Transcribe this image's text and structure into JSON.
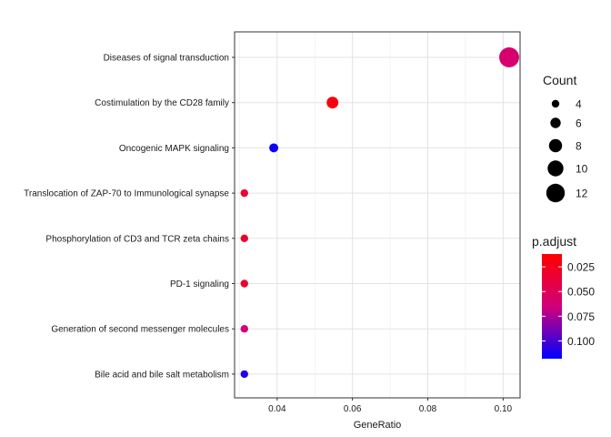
{
  "chart_data": {
    "type": "scatter",
    "title": "",
    "xlabel": "GeneRatio",
    "ylabel": "",
    "xlim": [
      0.0287,
      0.1045
    ],
    "x_ticks": [
      0.04,
      0.06,
      0.08,
      0.1
    ],
    "x_tick_labels": [
      "0.04",
      "0.06",
      "0.08",
      "0.10"
    ],
    "grid": true,
    "categories": [
      "Diseases of signal transduction",
      "Costimulation by the CD28 family",
      "Oncogenic MAPK signaling",
      "Translocation of ZAP-70 to Immunological synapse",
      "Phosphorylation of CD3 and TCR zeta chains",
      "PD-1 signaling",
      "Generation of second messenger molecules",
      "Bile acid and bile salt metabolism"
    ],
    "points": [
      {
        "category": "Diseases of signal transduction",
        "gene_ratio": 0.1016,
        "count": 13,
        "p_adjust": 0.06
      },
      {
        "category": "Costimulation by the CD28 family",
        "gene_ratio": 0.0547,
        "count": 7,
        "p_adjust": 0.018
      },
      {
        "category": "Oncogenic MAPK signaling",
        "gene_ratio": 0.0391,
        "count": 5,
        "p_adjust": 0.115
      },
      {
        "category": "Translocation of ZAP-70 to Immunological synapse",
        "gene_ratio": 0.0313,
        "count": 4,
        "p_adjust": 0.033
      },
      {
        "category": "Phosphorylation of CD3 and TCR zeta chains",
        "gene_ratio": 0.0313,
        "count": 4,
        "p_adjust": 0.033
      },
      {
        "category": "PD-1 signaling",
        "gene_ratio": 0.0313,
        "count": 4,
        "p_adjust": 0.033
      },
      {
        "category": "Generation of second messenger molecules",
        "gene_ratio": 0.0313,
        "count": 4,
        "p_adjust": 0.065
      },
      {
        "category": "Bile acid and bile salt metabolism",
        "gene_ratio": 0.0313,
        "count": 4,
        "p_adjust": 0.11
      }
    ],
    "size_legend": {
      "title": "Count",
      "values": [
        4,
        6,
        8,
        10,
        12
      ],
      "labels": [
        "4",
        "6",
        "8",
        "10",
        "12"
      ]
    },
    "color_legend": {
      "title": "p.adjust",
      "low_color": "#ff0000",
      "mid_color": "#d2007a",
      "high_color": "#0000ff",
      "range": [
        0.012,
        0.118
      ],
      "ticks": [
        0.025,
        0.05,
        0.075,
        0.1
      ],
      "tick_labels": [
        "0.025",
        "0.050",
        "0.075",
        "0.100"
      ]
    },
    "legend_position": "right"
  }
}
